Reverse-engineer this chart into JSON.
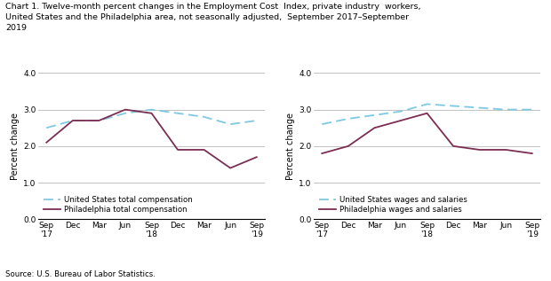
{
  "title_line1": "Chart 1. Twelve-month percent changes in the Employment Cost  Index, private industry  workers,",
  "title_line2": "United States and the Philadelphia area, not seasonally adjusted,  September 2017–September",
  "title_line3": "2019",
  "ylabel": "Percent change",
  "source": "Source: U.S. Bureau of Labor Statistics.",
  "x_labels": [
    "Sep\n'17",
    "Dec",
    "Mar",
    "Jun",
    "Sep\n'18",
    "Dec",
    "Mar",
    "Jun",
    "Sep\n'19"
  ],
  "us_total_comp": [
    2.5,
    2.7,
    2.7,
    2.9,
    3.0,
    2.9,
    2.8,
    2.6,
    2.7
  ],
  "philly_total_comp": [
    2.1,
    2.7,
    2.7,
    3.0,
    2.9,
    1.9,
    1.9,
    1.4,
    1.7
  ],
  "us_wages_sal": [
    2.6,
    2.75,
    2.85,
    2.95,
    3.15,
    3.1,
    3.05,
    3.0,
    3.0
  ],
  "philly_wages_sal": [
    1.8,
    2.0,
    2.5,
    2.7,
    2.9,
    2.0,
    1.9,
    1.9,
    1.8
  ],
  "us_color": "#7EC8E3",
  "philly_color": "#7B2D52",
  "ylim": [
    0.0,
    4.0
  ],
  "yticks": [
    0.0,
    1.0,
    2.0,
    3.0,
    4.0
  ],
  "left_legend": [
    "United States total compensation",
    "Philadelphia total compensation"
  ],
  "right_legend": [
    "United States wages and salaries",
    "Philadelphia wages and salaries"
  ],
  "grid_color": "#AAAAAA",
  "grid_lw": 0.5
}
